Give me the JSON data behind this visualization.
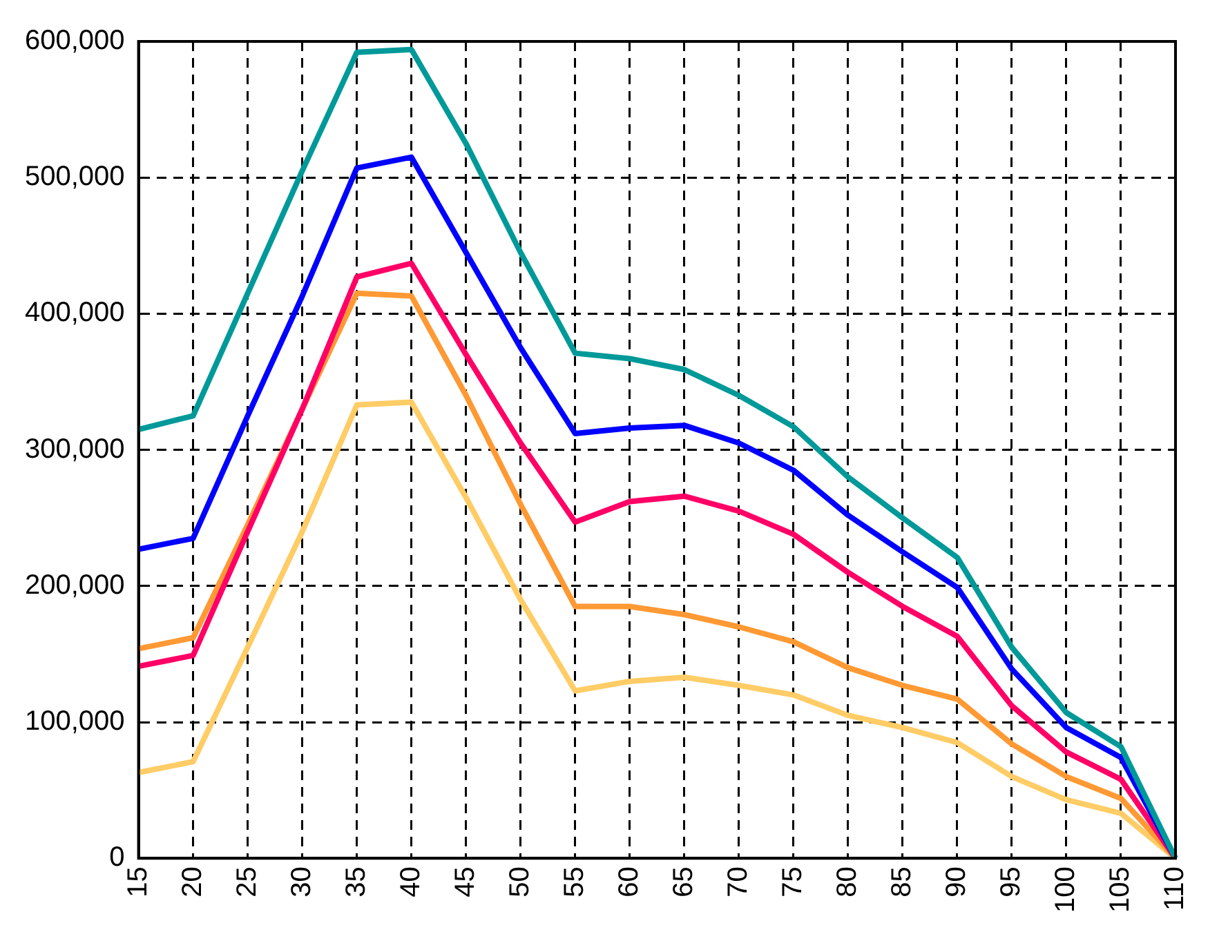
{
  "chart_data": {
    "type": "line",
    "categories": [
      "15",
      "20",
      "25",
      "30",
      "35",
      "40",
      "45",
      "50",
      "55",
      "60",
      "65",
      "70",
      "75",
      "80",
      "85",
      "90",
      "95",
      "100",
      "105",
      "110"
    ],
    "series": [
      {
        "color": "#009999",
        "values": [
          315000,
          325000,
          415000,
          505000,
          592000,
          594000,
          525000,
          445000,
          371000,
          367000,
          359000,
          340000,
          317000,
          280000,
          250000,
          221000,
          155000,
          107000,
          82000,
          0
        ]
      },
      {
        "color": "#0000ff",
        "values": [
          227000,
          235000,
          325000,
          413000,
          507000,
          515000,
          445000,
          375000,
          312000,
          316000,
          318000,
          305000,
          285000,
          252000,
          225000,
          199000,
          139000,
          96000,
          74000,
          0
        ]
      },
      {
        "color": "#ff0066",
        "values": [
          141000,
          149000,
          240000,
          330000,
          427000,
          437000,
          370000,
          305000,
          247000,
          262000,
          266000,
          255000,
          238000,
          210000,
          185000,
          163000,
          112000,
          78000,
          58000,
          0
        ]
      },
      {
        "color": "#ff9933",
        "values": [
          154000,
          162000,
          245000,
          330000,
          415000,
          413000,
          340000,
          260000,
          185000,
          185000,
          179000,
          170000,
          159000,
          140000,
          127000,
          117000,
          84000,
          60000,
          44000,
          0
        ]
      },
      {
        "color": "#ffcc66",
        "values": [
          63000,
          71000,
          155000,
          240000,
          333000,
          335000,
          265000,
          190000,
          123000,
          130000,
          133000,
          127000,
          120000,
          105000,
          96000,
          85000,
          60000,
          43000,
          33000,
          0
        ]
      }
    ],
    "ylim": [
      0,
      600000
    ],
    "yticks": [
      0,
      {
        "value": 100000,
        "label": "100,000"
      },
      {
        "value": 200000,
        "label": "200,000"
      },
      {
        "value": 300000,
        "label": "300,000"
      },
      {
        "value": 400000,
        "label": "400,000"
      },
      {
        "value": 500000,
        "label": "500,000"
      },
      {
        "value": 600000,
        "label": "600,000"
      }
    ],
    "grid": true,
    "legend": false,
    "marker": "none",
    "line_style": "solid"
  }
}
